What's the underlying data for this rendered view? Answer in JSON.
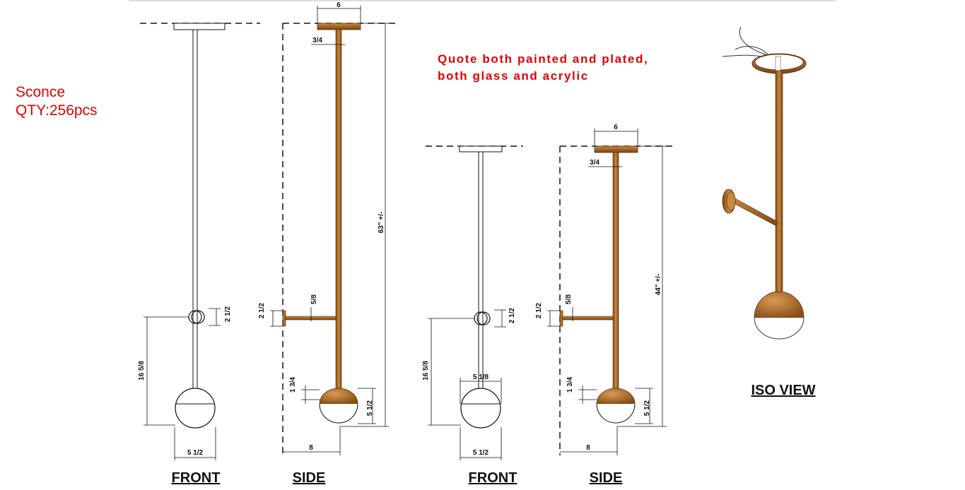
{
  "notes": {
    "sconce_line1": "Sconce",
    "sconce_line2": "QTY:256pcs",
    "quote_line1": "Quote both painted and plated,",
    "quote_line2": "both glass and acrylic"
  },
  "view_labels": {
    "front_a": "FRONT",
    "side_a": "SIDE",
    "front_b": "FRONT",
    "side_b": "SIDE",
    "iso": "ISO VIEW"
  },
  "dimensions": {
    "a_canopy": "6",
    "a_stem": "3/4",
    "a_overall": "63\" +/-",
    "a_ring": "2 1/2",
    "a_wallplate": "2 1/2",
    "a_arm": "5/8",
    "a_drop": "16 5/8",
    "a_globe_cap": "1 3/4",
    "a_globe_h": "5 1/2",
    "a_globe_w": "5 1/2",
    "a_projection": "8",
    "b_canopy": "6",
    "b_stem": "3/4",
    "b_overall": "44\" +/-",
    "b_ring": "2 1/2",
    "b_wallplate": "2 1/2",
    "b_arm": "5/8",
    "b_drop": "16 5/8",
    "b_globe_top": "5 1/8",
    "b_globe_cap": "1 3/4",
    "b_globe_h": "5 1/2",
    "b_globe_w": "5 1/2",
    "b_projection": "8"
  },
  "colors": {
    "bronze": "#b86f2a",
    "bronze_dark": "#7a4513",
    "note_red": "#e10000"
  }
}
